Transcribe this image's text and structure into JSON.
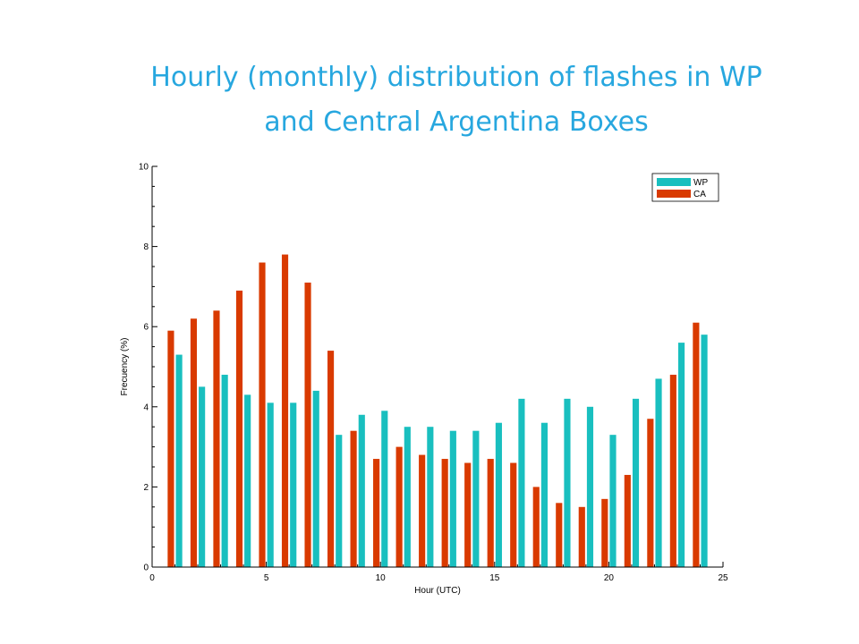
{
  "slide": {
    "title_line1": "Hourly (monthly) distribution of flashes in WP",
    "title_line2": "and Central Argentina Boxes"
  },
  "chart_data": {
    "type": "bar",
    "x": [
      1,
      2,
      3,
      4,
      5,
      6,
      7,
      8,
      9,
      10,
      11,
      12,
      13,
      14,
      15,
      16,
      17,
      18,
      19,
      20,
      21,
      22,
      23,
      24
    ],
    "series": [
      {
        "name": "WP",
        "color": "#19bfbf",
        "values": [
          5.3,
          4.5,
          4.8,
          4.3,
          4.1,
          4.1,
          4.4,
          3.3,
          3.8,
          3.9,
          3.5,
          3.5,
          3.4,
          3.4,
          3.6,
          4.2,
          3.6,
          4.2,
          4.0,
          3.3,
          4.2,
          4.7,
          5.6,
          5.8
        ]
      },
      {
        "name": "CA",
        "color": "#d93a00",
        "values": [
          5.9,
          6.2,
          6.4,
          6.9,
          7.6,
          7.8,
          7.1,
          5.4,
          3.4,
          2.7,
          3.0,
          2.8,
          2.7,
          2.6,
          2.7,
          2.6,
          2.0,
          1.6,
          1.5,
          1.7,
          2.3,
          3.7,
          4.8,
          6.1
        ]
      }
    ],
    "xlabel": "Hour (UTC)",
    "ylabel": "Frecuency (%)",
    "xlim": [
      0,
      25
    ],
    "ylim": [
      0,
      10
    ],
    "xticks": [
      0,
      5,
      10,
      15,
      20,
      25
    ],
    "yticks": [
      0,
      2,
      4,
      6,
      8,
      10
    ],
    "grid": false,
    "legend_position": "top-right"
  }
}
